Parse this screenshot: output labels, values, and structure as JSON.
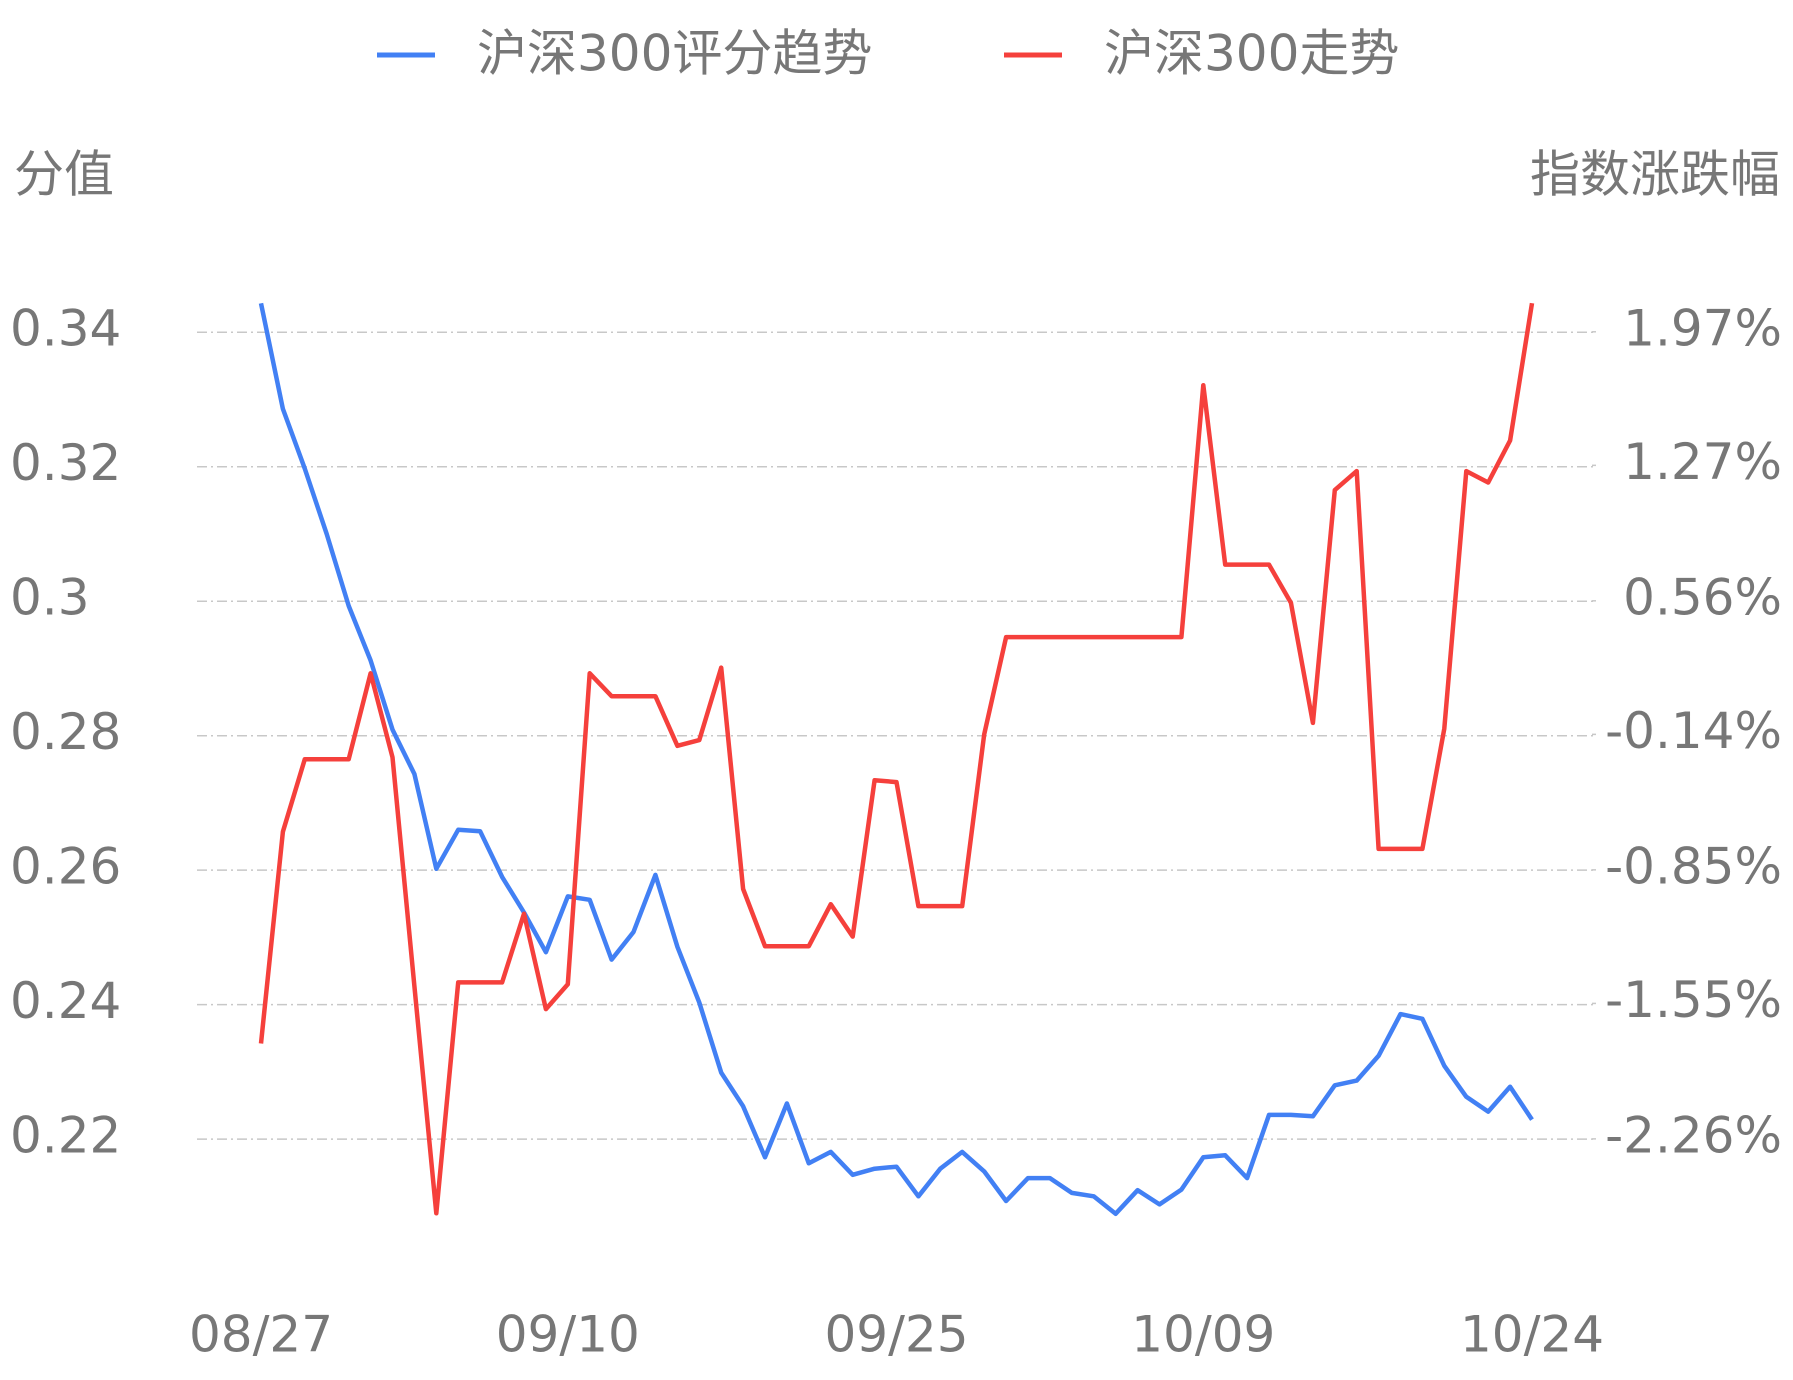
{
  "chart_data": {
    "type": "line",
    "y_label": "分值",
    "y2_label": "指数涨跌幅",
    "categories": [
      "08/27",
      null,
      null,
      null,
      null,
      null,
      null,
      null,
      null,
      null,
      null,
      null,
      null,
      null,
      "09/10",
      null,
      null,
      null,
      null,
      null,
      null,
      null,
      null,
      null,
      null,
      null,
      null,
      null,
      null,
      "09/25",
      null,
      null,
      null,
      null,
      null,
      null,
      null,
      null,
      null,
      null,
      null,
      null,
      null,
      "10/09",
      null,
      null,
      null,
      null,
      null,
      null,
      null,
      null,
      null,
      null,
      null,
      null,
      null,
      null,
      "10/24"
    ],
    "series": [
      {
        "name": "沪深300评分趋势",
        "color": "#4280f4",
        "values": [
          0.3443,
          0.3286,
          0.3197,
          0.31,
          0.2993,
          0.2912,
          0.2809,
          0.2743,
          0.2602,
          0.266,
          0.2658,
          0.259,
          0.2537,
          0.2478,
          0.2561,
          0.2556,
          0.2467,
          0.2508,
          0.2593,
          0.2486,
          0.2403,
          0.2299,
          0.2249,
          0.2173,
          0.2253,
          0.2164,
          0.2181,
          0.2147,
          0.2156,
          0.2159,
          0.2115,
          0.2156,
          0.2181,
          0.2152,
          0.2108,
          0.2142,
          0.2142,
          0.212,
          0.2115,
          0.2089,
          0.2124,
          0.2103,
          0.2125,
          0.2173,
          0.2176,
          0.2142,
          0.2236,
          0.2236,
          0.2234,
          0.228,
          0.2287,
          0.2324,
          0.2386,
          0.2379,
          0.2309,
          0.2263,
          0.2241,
          0.2278,
          0.2229
        ]
      },
      {
        "name": "沪深300走势",
        "color": "#f5403c",
        "axis": "y2",
        "values": [
          -1.76,
          -0.65,
          -0.27,
          -0.27,
          -0.27,
          0.18,
          -0.26,
          -1.46,
          -2.65,
          -1.44,
          -1.44,
          -1.44,
          -1.08,
          -1.58,
          -1.45,
          0.18,
          0.06,
          0.06,
          0.06,
          -0.2,
          -0.17,
          0.21,
          -0.95,
          -1.25,
          -1.25,
          -1.25,
          -1.03,
          -1.2,
          -0.38,
          -0.39,
          -1.04,
          -1.04,
          -1.04,
          -0.14,
          0.37,
          0.37,
          0.37,
          0.37,
          0.37,
          0.37,
          0.37,
          0.37,
          0.37,
          1.69,
          0.75,
          0.75,
          0.75,
          0.55,
          -0.08,
          1.14,
          1.24,
          -0.74,
          -0.74,
          -0.74,
          -0.11,
          1.24,
          1.18,
          1.4,
          2.12
        ]
      }
    ],
    "ylim": [
      0.205,
      0.35
    ],
    "yticks": [
      0.22,
      0.24,
      0.26,
      0.28,
      0.3,
      0.32,
      0.34
    ],
    "y2lim": [
      -2.79,
      2.32
    ],
    "y2ticks": [
      {
        "value": -2.26,
        "label": "-2.26%"
      },
      {
        "value": -1.55,
        "label": "-1.55%"
      },
      {
        "value": -0.85,
        "label": "-0.85%"
      },
      {
        "value": -0.14,
        "label": "-0.14%"
      },
      {
        "value": 0.56,
        "label": "0.56%"
      },
      {
        "value": 1.27,
        "label": "1.27%"
      },
      {
        "value": 1.97,
        "label": "1.97%"
      }
    ],
    "grid": true,
    "legend": "top"
  }
}
